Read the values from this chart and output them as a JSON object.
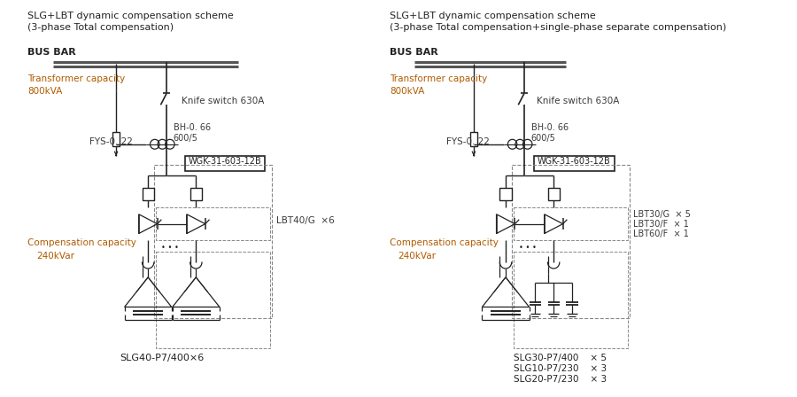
{
  "title_left_line1": "SLG+LBT dynamic compensation scheme",
  "title_left_line2": "(3-phase Total compensation)",
  "title_right_line1": "SLG+LBT dynamic compensation scheme",
  "title_right_line2": "(3-phase Total compensation+single-phase separate compensation)",
  "bus_bar_label": "BUS BAR",
  "transformer_label_line1": "Transformer capacity",
  "transformer_label_line2": "800kVA",
  "knife_switch_label": "Knife switch 630A",
  "fys_label": "FYS-0. 22",
  "bh_label_line1": "BH-0. 66",
  "bh_label_line2": "600/5",
  "wgk_label": "WGK-31-603-12B",
  "lbt_left_label": "LBT40/G  ×6",
  "lbt_right_label1": "LBT30/G  × 5",
  "lbt_right_label2": "LBT30/F  × 1",
  "lbt_right_label3": "LBT60/F  × 1",
  "comp_cap_label_line1": "Compensation capacity",
  "comp_cap_label_line2": "240kVar",
  "slg_left_label": "SLG40-P7/400×6",
  "slg_right_label1": "SLG30-P7/400    × 5",
  "slg_right_label2": "SLG10-P7/230    × 3",
  "slg_right_label3": "SLG20-P7/230    × 3",
  "text_color": "#3a3a3a",
  "line_color": "#888888",
  "bg_color": "#ffffff",
  "orange_color": "#b05a00",
  "bold_color": "#222222",
  "busbar_color": "#555555"
}
